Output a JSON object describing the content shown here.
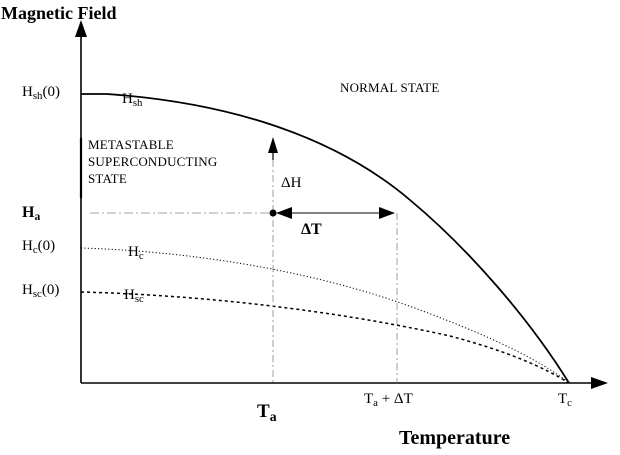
{
  "axes": {
    "y_label": "Magnetic Field",
    "x_label": "Temperature"
  },
  "regions": {
    "normal": "NORMAL STATE",
    "metastable_lines": [
      "METASTABLE",
      "SUPERCONDUCTING",
      "STATE"
    ]
  },
  "y_ticks": {
    "hsh0": {
      "main": "H",
      "sub": "sh",
      "tail": "(0)"
    },
    "ha": {
      "main": "H",
      "sub": "a",
      "tail": ""
    },
    "hc0": {
      "main": "H",
      "sub": "c",
      "tail": "(0)"
    },
    "hsc0": {
      "main": "H",
      "sub": "sc",
      "tail": "(0)"
    }
  },
  "curve_labels": {
    "hsh": {
      "main": "H",
      "sub": "sh"
    },
    "hc": {
      "main": "H",
      "sub": "c"
    },
    "hsc": {
      "main": "H",
      "sub": "sc"
    }
  },
  "x_ticks": {
    "ta": {
      "main": "T",
      "sub": "a",
      "tail": ""
    },
    "tadt": {
      "main": "T",
      "sub": "a",
      "tail": " + ΔT"
    },
    "tc": {
      "main": "T",
      "sub": "c",
      "tail": ""
    }
  },
  "annotations": {
    "delta_h": "ΔH",
    "delta_t": "ΔT"
  },
  "colors": {
    "ink": "#000000",
    "guide": "#888888"
  }
}
